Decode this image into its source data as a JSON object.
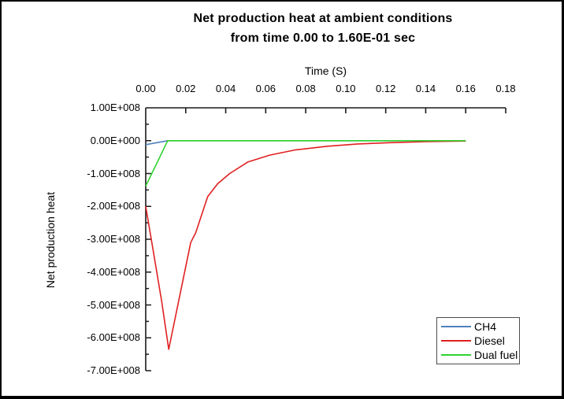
{
  "window": {
    "background": "#ffffff",
    "frame_border_color": "#000000"
  },
  "chart_data": {
    "type": "line",
    "title_line1": "Net production heat at ambient conditions",
    "title_line2": "from time 0.00 to 1.60E-01 sec",
    "xlabel": "Time (S)",
    "ylabel": "Net production heat",
    "x_axis_position": "top",
    "grid": false,
    "xlim": [
      0,
      0.18
    ],
    "ylim": [
      -700000000,
      100000000
    ],
    "x_ticks": [
      0.0,
      0.02,
      0.04,
      0.06,
      0.08,
      0.1,
      0.12,
      0.14,
      0.16,
      0.18
    ],
    "x_tick_labels": [
      "0.00",
      "0.02",
      "0.04",
      "0.06",
      "0.08",
      "0.10",
      "0.12",
      "0.14",
      "0.16",
      "0.18"
    ],
    "y_ticks": [
      100000000,
      0,
      -100000000,
      -200000000,
      -300000000,
      -400000000,
      -500000000,
      -600000000,
      -700000000
    ],
    "y_tick_labels": [
      "1.00E+008",
      "0.00E+000",
      "-1.00E+008",
      "-2.00E+008",
      "-3.00E+008",
      "-4.00E+008",
      "-5.00E+008",
      "-6.00E+008",
      "-7.00E+008"
    ],
    "y_minor_tick_step": 50000000,
    "axis_color": "#1a1a1a",
    "legend": {
      "position": "bottom-right",
      "border_color": "#4d4d4d",
      "entries": [
        "CH4",
        "Diesel",
        "Dual fuel"
      ]
    },
    "series": [
      {
        "name": "CH4",
        "color": "#4f81bd",
        "points": [
          [
            0.0,
            -12000000
          ],
          [
            0.011,
            0
          ],
          [
            0.16,
            0
          ]
        ]
      },
      {
        "name": "Diesel",
        "color": "#e02020",
        "points": [
          [
            0.0,
            -200000000
          ],
          [
            0.004,
            -345000000
          ],
          [
            0.008,
            -490000000
          ],
          [
            0.0115,
            -635000000
          ],
          [
            0.0225,
            -310000000
          ],
          [
            0.025,
            -280000000
          ],
          [
            0.031,
            -170000000
          ],
          [
            0.036,
            -131000000
          ],
          [
            0.042,
            -100000000
          ],
          [
            0.051,
            -65000000
          ],
          [
            0.062,
            -44000000
          ],
          [
            0.075,
            -28000000
          ],
          [
            0.091,
            -17000000
          ],
          [
            0.106,
            -10000000
          ],
          [
            0.122,
            -6000000
          ],
          [
            0.14,
            -3000000
          ],
          [
            0.16,
            -1000000
          ]
        ]
      },
      {
        "name": "Dual fuel",
        "color": "#2fd32f",
        "points": [
          [
            0.0,
            -138000000
          ],
          [
            0.011,
            0
          ],
          [
            0.16,
            0
          ]
        ]
      }
    ]
  }
}
